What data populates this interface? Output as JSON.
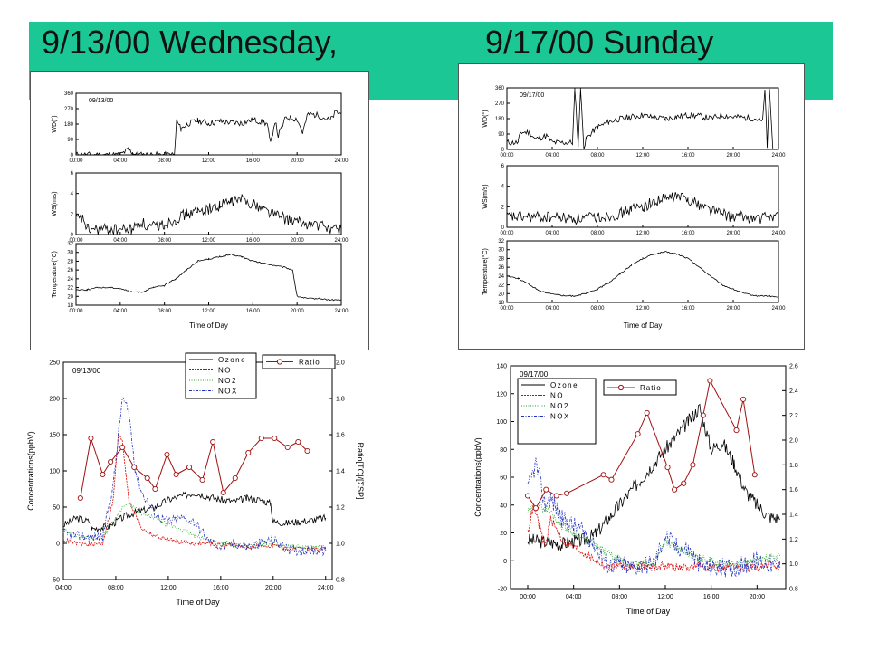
{
  "title": {
    "left": "9/13/00 Wednesday,",
    "right": "9/17/00 Sunday"
  },
  "colors": {
    "banner": "#1bc794",
    "ozone": "#000000",
    "no": "#e00000",
    "no2": "#22aa22",
    "nox": "#1f2fbf",
    "ratio": "#a01010"
  },
  "chart_data": [
    {
      "type": "line",
      "panel": "met-0913",
      "date_label": "09/13/00",
      "xlabel": "Time of Day",
      "x_ticks": [
        "00:00",
        "04:00",
        "08:00",
        "12:00",
        "16:00",
        "20:00",
        "24:00"
      ],
      "subplots": [
        {
          "ylabel": "WD(°)",
          "y_ticks": [
            "0",
            "90",
            "180",
            "270",
            "360"
          ],
          "ylim": [
            0,
            360
          ],
          "x": [
            0,
            4,
            4.7,
            5.1,
            5.5,
            8.9,
            9.1,
            9.5,
            10,
            11,
            12,
            13,
            14,
            15,
            16,
            17,
            17.3,
            17.6,
            18,
            18.3,
            19,
            20,
            20.5,
            21,
            22,
            23,
            23.5,
            24
          ],
          "values": [
            0,
            0,
            30,
            15,
            0,
            0,
            200,
            150,
            180,
            200,
            185,
            195,
            190,
            185,
            205,
            190,
            180,
            60,
            200,
            110,
            220,
            210,
            130,
            240,
            230,
            200,
            250,
            240
          ]
        },
        {
          "ylabel": "WS(m/s)",
          "y_ticks": [
            "0",
            "2",
            "4",
            "6"
          ],
          "ylim": [
            0,
            6
          ],
          "x": [
            0,
            0.7,
            1,
            2,
            3,
            4,
            5,
            6,
            6.5,
            7,
            8,
            9,
            10,
            11,
            12,
            13,
            14,
            15,
            16,
            17,
            18,
            19,
            20,
            21,
            22,
            23,
            24
          ],
          "values": [
            1.5,
            1.5,
            0.5,
            0.5,
            0.5,
            0.5,
            0.5,
            1.2,
            0.6,
            0.8,
            1,
            1.5,
            2,
            2.2,
            2.5,
            2.8,
            3.2,
            3.5,
            3,
            2.5,
            2,
            1.5,
            1.2,
            1,
            0.9,
            0.6,
            0.5
          ]
        },
        {
          "ylabel": "Temperature(°C)",
          "y_ticks": [
            "18",
            "20",
            "22",
            "24",
            "26",
            "28",
            "30",
            "32"
          ],
          "ylim": [
            18,
            32
          ],
          "x": [
            0,
            1,
            2,
            3,
            4,
            5,
            6,
            7,
            8,
            9,
            10,
            11,
            12,
            13,
            14,
            15,
            16,
            17,
            18,
            19,
            19.6,
            20,
            21,
            22,
            23,
            24
          ],
          "values": [
            21.5,
            21.5,
            22,
            22,
            21.8,
            21,
            21,
            22,
            22.5,
            24,
            26,
            28,
            28.5,
            29,
            29.5,
            29,
            28,
            27.5,
            27,
            26.5,
            26,
            20,
            19.5,
            19.5,
            19.2,
            19.2
          ]
        }
      ]
    },
    {
      "type": "line",
      "panel": "met-0917",
      "date_label": "09/17/00",
      "xlabel": "Time of Day",
      "x_ticks": [
        "00:00",
        "04:00",
        "08:00",
        "12:00",
        "16:00",
        "20:00",
        "24:00"
      ],
      "subplots": [
        {
          "ylabel": "WD(°)",
          "y_ticks": [
            "0",
            "90",
            "180",
            "270",
            "360"
          ],
          "ylim": [
            0,
            360
          ],
          "x": [
            0,
            1,
            1.2,
            2,
            2.5,
            3.5,
            4,
            5.8,
            6,
            6.3,
            6.5,
            6.8,
            7,
            7.5,
            8,
            9,
            10,
            11,
            12,
            13,
            14,
            15,
            16,
            17,
            18,
            19,
            20,
            21,
            22,
            22.6,
            22.8,
            23,
            23.2,
            23.5
          ],
          "values": [
            40,
            40,
            100,
            100,
            60,
            80,
            40,
            40,
            360,
            20,
            360,
            0,
            60,
            100,
            130,
            160,
            180,
            190,
            200,
            185,
            180,
            190,
            200,
            195,
            180,
            200,
            190,
            185,
            180,
            160,
            360,
            0,
            360,
            0
          ]
        },
        {
          "ylabel": "WS(m/s)",
          "y_ticks": [
            "0",
            "2",
            "4",
            "6"
          ],
          "ylim": [
            0,
            6
          ],
          "x": [
            0,
            2,
            4,
            6,
            8,
            10,
            11,
            12,
            13,
            14,
            15,
            16,
            17,
            18,
            19,
            20,
            21,
            22,
            23,
            24
          ],
          "values": [
            1,
            1,
            1,
            0.8,
            1,
            1.3,
            1.8,
            2,
            2.5,
            2.8,
            3,
            2.8,
            2.2,
            1.8,
            1.3,
            1,
            1,
            0.8,
            1,
            1.2
          ]
        },
        {
          "ylabel": "Temperature(°C)",
          "y_ticks": [
            "18",
            "20",
            "22",
            "24",
            "26",
            "28",
            "30",
            "32"
          ],
          "ylim": [
            18,
            32
          ],
          "x": [
            0,
            1,
            2,
            3,
            4,
            5,
            6,
            7,
            8,
            9,
            10,
            11,
            12,
            13,
            14,
            15,
            16,
            17,
            18,
            19,
            20,
            21,
            22,
            23,
            24
          ],
          "values": [
            24,
            23.5,
            22,
            20.5,
            20,
            19.5,
            19.5,
            20,
            21,
            22.5,
            24.5,
            26.5,
            28,
            29,
            29.5,
            29,
            28,
            26,
            24,
            22,
            21,
            20,
            19.5,
            19.5,
            19.2
          ]
        }
      ]
    },
    {
      "type": "line",
      "panel": "conc-0913",
      "date_label": "09/13/00",
      "xlabel": "Time of Day",
      "ylabel": "Concentrations(ppbV)",
      "y2label": "Ratio[TC]/[ΣSP]",
      "x_ticks": [
        "04:00",
        "08:00",
        "12:00",
        "16:00",
        "20:00",
        "24:00"
      ],
      "xlim": [
        4,
        24.5
      ],
      "y_ticks": [
        "-50",
        "0",
        "50",
        "100",
        "150",
        "200",
        "250"
      ],
      "ylim": [
        -50,
        250
      ],
      "y2_ticks": [
        "0.8",
        "1.0",
        "1.2",
        "1.4",
        "1.6",
        "1.8",
        "2.0"
      ],
      "y2lim": [
        0.8,
        2.0
      ],
      "legend": [
        "Ozone",
        "NO",
        "NO2",
        "NOX"
      ],
      "legend2": [
        "Ratio"
      ],
      "series": [
        {
          "name": "Ozone",
          "x": [
            4,
            5,
            6,
            6.2,
            7,
            7.5,
            8,
            9,
            10,
            11,
            12,
            13,
            14,
            15,
            16,
            17,
            18,
            19,
            19.8,
            20,
            21,
            22,
            23,
            24
          ],
          "values": [
            25,
            35,
            30,
            20,
            22,
            23,
            30,
            40,
            45,
            50,
            60,
            65,
            70,
            65,
            60,
            58,
            62,
            60,
            55,
            30,
            28,
            30,
            32,
            35
          ]
        },
        {
          "name": "NO",
          "x": [
            4,
            5,
            6,
            7,
            7.8,
            8.2,
            8.5,
            9,
            10,
            11,
            12,
            13,
            14,
            15,
            16,
            17,
            18,
            19,
            20,
            21,
            22,
            23,
            24
          ],
          "values": [
            5,
            0,
            -2,
            0,
            60,
            150,
            140,
            60,
            20,
            10,
            5,
            2,
            0,
            0,
            -2,
            -3,
            -5,
            -5,
            -2,
            -8,
            -8,
            -8,
            -8
          ]
        },
        {
          "name": "NO2",
          "x": [
            4,
            5,
            6,
            7,
            7.8,
            8.5,
            9,
            10,
            11,
            12,
            13,
            14,
            15,
            16,
            17,
            18,
            19,
            20,
            21,
            22,
            23,
            24
          ],
          "values": [
            15,
            10,
            8,
            8,
            30,
            50,
            55,
            40,
            35,
            25,
            20,
            10,
            5,
            0,
            -3,
            -3,
            -2,
            0,
            -5,
            -5,
            -5,
            -5
          ]
        },
        {
          "name": "NOX",
          "x": [
            4,
            5,
            6,
            7,
            7.8,
            8.2,
            8.5,
            9,
            9.5,
            10,
            11,
            12,
            13,
            14,
            15,
            16,
            17,
            18,
            19,
            20,
            21,
            22,
            23,
            24
          ],
          "values": [
            15,
            10,
            8,
            10,
            80,
            150,
            200,
            180,
            100,
            70,
            40,
            30,
            35,
            30,
            5,
            -5,
            0,
            -5,
            0,
            5,
            -8,
            -10,
            -10,
            -10
          ]
        },
        {
          "name": "Ratio",
          "axis": "y2",
          "x": [
            5.3,
            6.1,
            7,
            7.6,
            8.5,
            9.4,
            10.4,
            11,
            11.9,
            12.6,
            13.6,
            14.6,
            15.4,
            16.2,
            17.1,
            18.1,
            19.1,
            20.1,
            21.1,
            21.9,
            22.6
          ],
          "values": [
            1.25,
            1.58,
            1.38,
            1.45,
            1.53,
            1.42,
            1.36,
            1.3,
            1.49,
            1.38,
            1.42,
            1.35,
            1.56,
            1.28,
            1.36,
            1.5,
            1.58,
            1.58,
            1.53,
            1.56,
            1.51
          ]
        }
      ]
    },
    {
      "type": "line",
      "panel": "conc-0917",
      "date_label": "09/17/00",
      "xlabel": "Time of Day",
      "ylabel": "Concentrations(ppbV)",
      "x_ticks": [
        "00:00",
        "04:00",
        "08:00",
        "12:00",
        "16:00",
        "20:00"
      ],
      "xlim": [
        -1.5,
        22.5
      ],
      "y_ticks": [
        "-20",
        "0",
        "20",
        "40",
        "60",
        "80",
        "100",
        "120",
        "140"
      ],
      "ylim": [
        -20,
        140
      ],
      "y2_ticks": [
        "0.8",
        "1.0",
        "1.2",
        "1.4",
        "1.6",
        "1.8",
        "2.0",
        "2.2",
        "2.4",
        "2.6"
      ],
      "y2lim": [
        0.8,
        2.6
      ],
      "legend": [
        "Ozone",
        "NO",
        "NO2",
        "NOX"
      ],
      "legend2": [
        "Ratio"
      ],
      "series": [
        {
          "name": "Ozone",
          "x": [
            0,
            1,
            2,
            3,
            4,
            5,
            6,
            7,
            8,
            9,
            10,
            11,
            12,
            13,
            14,
            15,
            16,
            17,
            18,
            19,
            20,
            21,
            22
          ],
          "values": [
            15,
            14,
            13,
            12,
            14,
            15,
            20,
            30,
            40,
            50,
            60,
            70,
            80,
            90,
            100,
            110,
            80,
            85,
            70,
            50,
            40,
            32,
            30
          ]
        },
        {
          "name": "NO",
          "x": [
            0,
            0.5,
            1,
            1.5,
            2,
            3,
            4,
            5,
            6,
            7,
            8,
            9,
            10,
            11,
            12,
            13,
            14,
            15,
            16,
            17,
            18,
            19,
            20,
            21,
            22
          ],
          "values": [
            20,
            40,
            25,
            10,
            30,
            15,
            10,
            5,
            0,
            -5,
            -3,
            -5,
            -3,
            -5,
            -3,
            -5,
            -5,
            -3,
            -5,
            -5,
            -5,
            -5,
            -5,
            -3,
            -3
          ]
        },
        {
          "name": "NO2",
          "x": [
            0,
            1,
            2,
            3,
            4,
            5,
            6,
            7,
            8,
            9,
            10,
            11,
            12,
            13,
            14,
            15,
            16,
            17,
            18,
            19,
            20,
            21,
            22
          ],
          "values": [
            35,
            40,
            35,
            25,
            20,
            15,
            10,
            5,
            0,
            -3,
            -2,
            -3,
            15,
            8,
            5,
            2,
            0,
            -2,
            -3,
            -2,
            0,
            2,
            3
          ]
        },
        {
          "name": "NOX",
          "x": [
            0,
            0.7,
            1,
            1.5,
            2,
            3,
            4,
            5,
            6,
            7,
            8,
            9,
            10,
            11,
            12,
            13,
            14,
            15,
            16,
            17,
            18,
            19,
            20,
            21,
            22
          ],
          "values": [
            50,
            70,
            60,
            40,
            45,
            30,
            25,
            20,
            10,
            -3,
            -2,
            -5,
            -3,
            -2,
            18,
            10,
            8,
            -3,
            -5,
            -5,
            -5,
            -3,
            0,
            -2,
            -5
          ]
        },
        {
          "name": "Ratio",
          "axis": "y2",
          "x": [
            0,
            0.7,
            1.6,
            2.5,
            3.4,
            6.6,
            7.3,
            9.6,
            10.4,
            12.2,
            12.8,
            13.6,
            14.4,
            15.3,
            15.9,
            18.2,
            18.8,
            19.8
          ],
          "values": [
            1.55,
            1.45,
            1.6,
            1.55,
            1.57,
            1.72,
            1.68,
            2.05,
            2.22,
            1.78,
            1.6,
            1.65,
            1.8,
            2.2,
            2.48,
            2.08,
            2.33,
            1.72
          ]
        }
      ]
    }
  ]
}
